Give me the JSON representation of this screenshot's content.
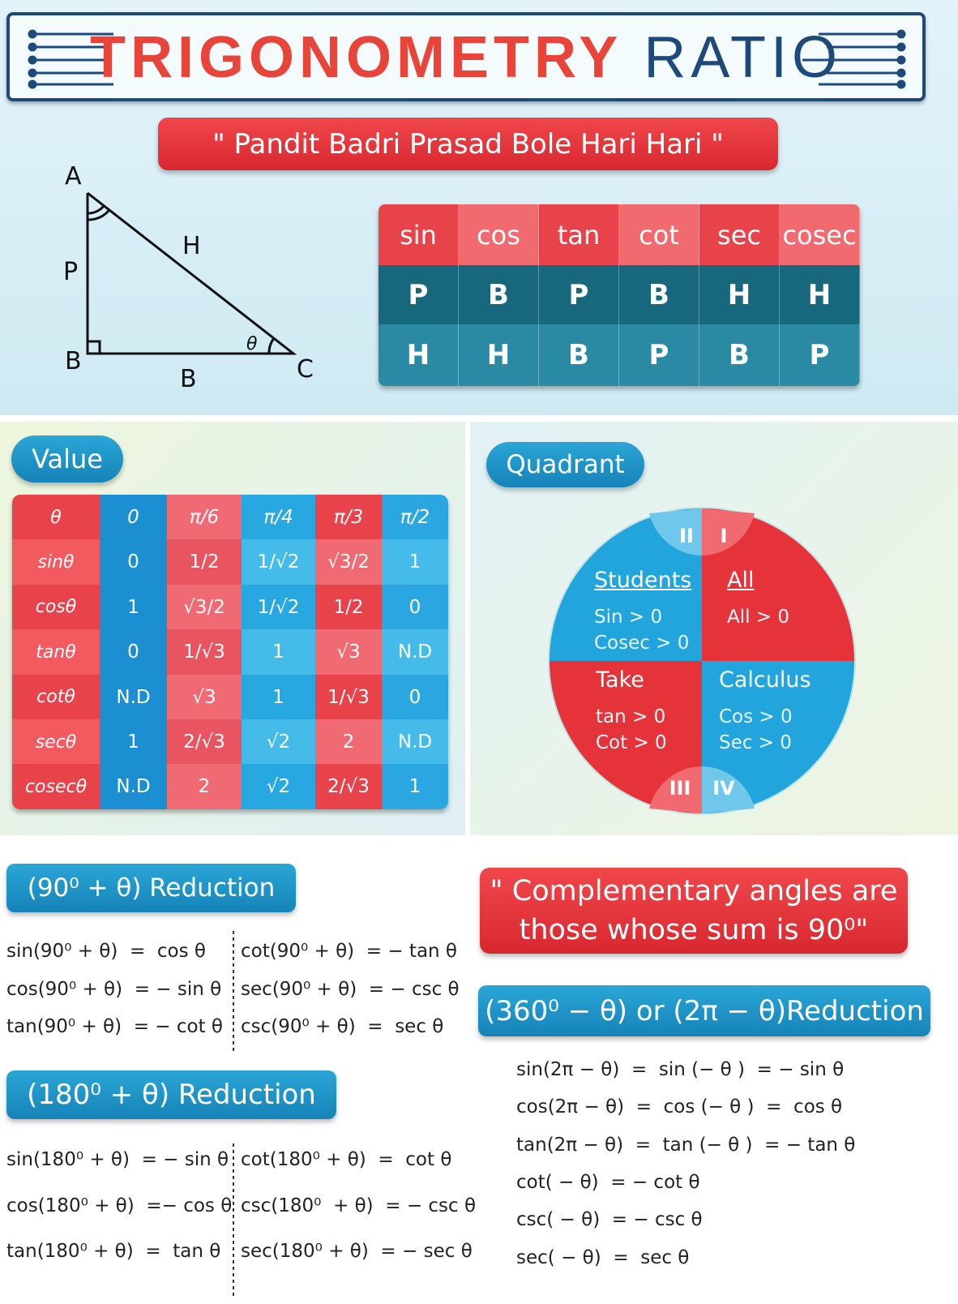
{
  "header": {
    "title_bold": "TRIGONOMETRY",
    "title_light": "RATIO"
  },
  "mnemonic": "\" Pandit Badri Prasad Bole Hari Hari \"",
  "triangle": {
    "vertices": [
      "A",
      "B",
      "C"
    ],
    "perpendicular": "P",
    "hypotenuse": "H",
    "base": "B",
    "angle": "θ"
  },
  "ratio_table": {
    "functions": [
      "sin",
      "cos",
      "tan",
      "cot",
      "sec",
      "cosec"
    ],
    "numerators": [
      "P",
      "B",
      "P",
      "B",
      "H",
      "H"
    ],
    "denominators": [
      "H",
      "H",
      "B",
      "P",
      "B",
      "P"
    ]
  },
  "value": {
    "label": "Value",
    "header": [
      "θ",
      "0",
      "π/6",
      "π/4",
      "π/3",
      "π/2"
    ],
    "rows": [
      [
        "sinθ",
        "0",
        "1/2",
        "1/√2",
        "√3/2",
        "1"
      ],
      [
        "cosθ",
        "1",
        "√3/2",
        "1/√2",
        "1/2",
        "0"
      ],
      [
        "tanθ",
        "0",
        "1/√3",
        "1",
        "√3",
        "N.D"
      ],
      [
        "cotθ",
        "N.D",
        "√3",
        "1",
        "1/√3",
        "0"
      ],
      [
        "secθ",
        "1",
        "2/√3",
        "√2",
        "2",
        "N.D"
      ],
      [
        "cosecθ",
        "N.D",
        "2",
        "√2",
        "2/√3",
        "1"
      ]
    ]
  },
  "quadrant": {
    "label": "Quadrant",
    "quadrants": [
      {
        "numeral": "I",
        "word": "All",
        "rules": [
          "All > 0"
        ]
      },
      {
        "numeral": "II",
        "word": "Students",
        "rules": [
          "Sin > 0",
          "Cosec > 0"
        ]
      },
      {
        "numeral": "III",
        "word": "Take",
        "rules": [
          "tan > 0",
          "Cot > 0"
        ]
      },
      {
        "numeral": "IV",
        "word": "Calculus",
        "rules": [
          "Cos > 0",
          "Sec > 0"
        ]
      }
    ]
  },
  "reduction_90": {
    "title": "(90⁰ + θ) Reduction",
    "left": [
      "sin(90⁰ + θ)  =  cos θ",
      "cos(90⁰ + θ)  = − sin θ",
      "tan(90⁰ + θ)  = − cot θ"
    ],
    "right": [
      "cot(90⁰ + θ)  = − tan θ",
      "sec(90⁰ + θ)  = − csc θ",
      "csc(90⁰ + θ)  =  sec θ"
    ]
  },
  "reduction_180": {
    "title": "(180⁰ + θ) Reduction",
    "left": [
      "sin(180⁰ + θ)  = − sin θ",
      "cos(180⁰ + θ)  =− cos θ",
      "tan(180⁰ + θ)  =  tan θ"
    ],
    "right": [
      "cot(180⁰ + θ)  =  cot θ",
      "csc(180⁰  + θ)  = − csc θ",
      "sec(180⁰ + θ)  = − sec θ"
    ]
  },
  "complementary": [
    "\" Complementary angles are",
    "those whose sum is 90⁰\""
  ],
  "reduction_360": {
    "title": "(360⁰ − θ) or (2π − θ)Reduction",
    "formulas": [
      "sin(2π − θ)  =  sin (− θ )  = − sin θ",
      "cos(2π − θ)  =  cos (− θ )  =  cos θ",
      "tan(2π − θ)  =  tan (− θ )  = − tan θ",
      "cot( − θ)  = − cot θ",
      "csc( − θ)  = − csc θ",
      "sec( − θ)  =  sec θ"
    ]
  }
}
